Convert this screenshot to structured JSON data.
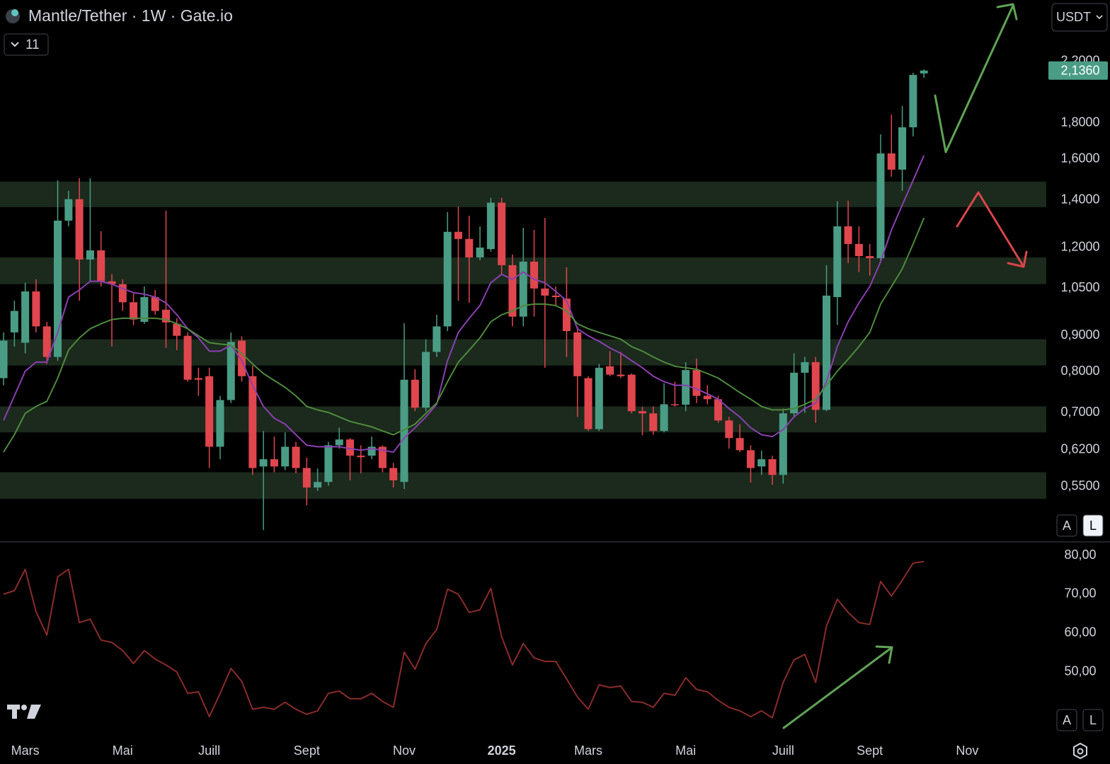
{
  "header": {
    "title": "Mantle/Tether · 1W · Gate.io",
    "indicators": "11",
    "currency": "USDT"
  },
  "chart_data": [
    {
      "type": "candlestick",
      "open": [
        0.783,
        0.909,
        0.879,
        1.039,
        0.927,
        0.839,
        1.309,
        1.404,
        1.153,
        1.188,
        1.074,
        1.064,
        1.003,
        0.941,
        1.02,
        0.979,
        0.935,
        0.899,
        0.783,
        0.788,
        0.626,
        0.729,
        0.885,
        0.788,
        0.587,
        0.601,
        0.587,
        0.626,
        0.584,
        0.548,
        0.558,
        0.629,
        0.641,
        0.608,
        0.608,
        0.626,
        0.584,
        0.558,
        0.779,
        0.711,
        0.853,
        0.927,
        1.262,
        1.233,
        1.161,
        1.193,
        1.388,
        1.132,
        0.957,
        1.145,
        1.049,
        1.025,
        1.015,
        0.909,
        0.783,
        0.663,
        0.814,
        0.792,
        0.792,
        0.703,
        0.698,
        0.659,
        0.719,
        0.718,
        0.804,
        0.739,
        0.731,
        0.682,
        0.644,
        0.619,
        0.587,
        0.601,
        0.571,
        0.698,
        0.797,
        0.825,
        0.706,
        1.02,
        1.285,
        1.213,
        1.166,
        1.158,
        1.63,
        1.546,
        1.775,
        2.116
      ],
      "high": [
        0.909,
        1.008,
        1.069,
        1.081,
        0.941,
        1.493,
        1.443,
        1.504,
        1.504,
        1.265,
        1.099,
        1.081,
        1.032,
        1.056,
        1.044,
        1.352,
        0.952,
        0.909,
        0.81,
        0.81,
        0.739,
        0.909,
        0.897,
        0.816,
        0.659,
        0.647,
        0.656,
        0.636,
        0.604,
        0.583,
        0.636,
        0.666,
        0.644,
        0.629,
        0.647,
        0.629,
        0.594,
        0.937,
        0.806,
        0.889,
        0.963,
        1.346,
        1.371,
        1.33,
        1.285,
        1.41,
        1.41,
        1.172,
        1.279,
        1.27,
        1.321,
        1.056,
        1.124,
        0.927,
        0.788,
        0.82,
        0.855,
        0.853,
        0.795,
        0.713,
        0.714,
        0.77,
        0.774,
        0.825,
        0.835,
        0.765,
        0.739,
        0.69,
        0.674,
        0.629,
        0.618,
        0.608,
        0.709,
        0.849,
        0.839,
        0.839,
        1.132,
        1.394,
        1.397,
        1.285,
        1.213,
        1.735,
        1.85,
        1.902,
        2.121,
        2.145
      ],
      "low": [
        0.765,
        0.868,
        0.849,
        0.909,
        0.82,
        0.829,
        1.285,
        1.008,
        1.074,
        1.056,
        0.868,
        0.975,
        0.931,
        0.935,
        0.963,
        0.864,
        0.858,
        0.774,
        0.739,
        0.584,
        0.601,
        0.722,
        0.774,
        0.571,
        0.477,
        0.576,
        0.58,
        0.574,
        0.517,
        0.542,
        0.551,
        0.622,
        0.561,
        0.574,
        0.601,
        0.576,
        0.548,
        0.545,
        0.703,
        0.703,
        0.839,
        0.913,
        1.008,
        1.001,
        1.15,
        1.183,
        1.099,
        0.927,
        0.927,
        0.957,
        0.81,
        0.992,
        0.839,
        0.69,
        0.659,
        0.659,
        0.788,
        0.783,
        0.698,
        0.65,
        0.651,
        0.656,
        0.714,
        0.703,
        0.722,
        0.719,
        0.677,
        0.622,
        0.615,
        0.557,
        0.571,
        0.553,
        0.555,
        0.69,
        0.699,
        0.677,
        0.703,
        0.931,
        1.14,
        1.107,
        1.094,
        1.145,
        1.511,
        1.443,
        1.723,
        2.086
      ],
      "close": [
        0.885,
        0.975,
        1.039,
        0.927,
        0.839,
        1.309,
        1.404,
        1.153,
        1.188,
        1.074,
        1.064,
        1.003,
        0.948,
        1.02,
        0.975,
        0.939,
        0.899,
        0.779,
        0.779,
        0.626,
        0.729,
        0.881,
        0.788,
        0.584,
        0.601,
        0.587,
        0.626,
        0.584,
        0.548,
        0.558,
        0.629,
        0.641,
        0.608,
        0.605,
        0.626,
        0.584,
        0.561,
        0.779,
        0.711,
        0.853,
        0.927,
        1.262,
        1.233,
        1.161,
        1.199,
        1.388,
        1.132,
        0.957,
        1.145,
        1.049,
        1.025,
        1.02,
        0.913,
        0.788,
        0.663,
        0.81,
        0.792,
        0.788,
        0.703,
        0.698,
        0.659,
        0.719,
        0.717,
        0.804,
        0.739,
        0.731,
        0.682,
        0.644,
        0.619,
        0.584,
        0.601,
        0.571,
        0.698,
        0.797,
        0.825,
        0.706,
        1.025,
        1.285,
        1.213,
        1.166,
        1.158,
        1.63,
        1.546,
        1.775,
        2.106,
        2.136
      ],
      "up_color": "#4a9c85",
      "down_color": "#e0464e",
      "lines": [
        {
          "color": "#8b3fb0",
          "values": [
            0.682,
            0.739,
            0.801,
            0.825,
            0.825,
            0.909,
            1.02,
            1.044,
            1.074,
            1.074,
            1.064,
            1.049,
            1.035,
            1.03,
            1.02,
            1.001,
            0.963,
            0.92,
            0.893,
            0.855,
            0.855,
            0.872,
            0.829,
            0.765,
            0.714,
            0.687,
            0.674,
            0.651,
            0.629,
            0.626,
            0.626,
            0.626,
            0.622,
            0.619,
            0.622,
            0.619,
            0.615,
            0.644,
            0.666,
            0.69,
            0.719,
            0.829,
            0.909,
            0.952,
            0.992,
            1.069,
            1.099,
            1.081,
            1.107,
            1.081,
            1.069,
            1.039,
            1.008,
            0.92,
            0.899,
            0.883,
            0.864,
            0.849,
            0.829,
            0.81,
            0.788,
            0.774,
            0.765,
            0.765,
            0.756,
            0.744,
            0.731,
            0.709,
            0.69,
            0.666,
            0.651,
            0.647,
            0.662,
            0.69,
            0.709,
            0.722,
            0.774,
            0.868,
            0.941,
            1.001,
            1.056,
            1.145,
            1.27,
            1.378,
            1.493,
            1.619
          ]
        },
        {
          "color": "#4d8a3e",
          "values": [
            0.615,
            0.651,
            0.698,
            0.714,
            0.726,
            0.783,
            0.858,
            0.893,
            0.92,
            0.935,
            0.948,
            0.952,
            0.952,
            0.952,
            0.952,
            0.948,
            0.935,
            0.92,
            0.899,
            0.879,
            0.875,
            0.872,
            0.849,
            0.82,
            0.795,
            0.777,
            0.76,
            0.739,
            0.714,
            0.706,
            0.7,
            0.69,
            0.68,
            0.674,
            0.668,
            0.659,
            0.651,
            0.662,
            0.674,
            0.698,
            0.722,
            0.774,
            0.825,
            0.858,
            0.893,
            0.941,
            0.963,
            0.975,
            0.992,
            0.997,
            0.997,
            0.992,
            0.975,
            0.935,
            0.92,
            0.909,
            0.899,
            0.889,
            0.868,
            0.855,
            0.839,
            0.825,
            0.814,
            0.81,
            0.806,
            0.795,
            0.783,
            0.765,
            0.747,
            0.731,
            0.714,
            0.706,
            0.706,
            0.709,
            0.719,
            0.731,
            0.765,
            0.801,
            0.833,
            0.868,
            0.909,
            0.997,
            1.056,
            1.119,
            1.213,
            1.321
          ]
        }
      ],
      "zones": [
        [
          1.368,
          1.487
        ],
        [
          1.064,
          1.161
        ],
        [
          0.816,
          0.889
        ],
        [
          0.656,
          0.714
        ],
        [
          0.528,
          0.576
        ]
      ],
      "zone_color": "#1b2a1c",
      "log_scale": true,
      "ylim": [
        0.46,
        2.689
      ],
      "yticks": [
        {
          "value": 0.55,
          "label": "0,5500"
        },
        {
          "value": 0.62,
          "label": "0,6200"
        },
        {
          "value": 0.7,
          "label": "0,7000"
        },
        {
          "value": 0.8,
          "label": "0,8000"
        },
        {
          "value": 0.9,
          "label": "0,9000"
        },
        {
          "value": 1.05,
          "label": "1,0500"
        },
        {
          "value": 1.2,
          "label": "1,2000"
        },
        {
          "value": 1.4,
          "label": "1,4000"
        },
        {
          "value": 1.6,
          "label": "1,6000"
        },
        {
          "value": 1.8,
          "label": "1,8000"
        },
        {
          "value": 2.2,
          "label": "2,2000"
        }
      ],
      "last_price": {
        "value": 2.136,
        "label": "2,1360"
      },
      "xlim": [
        -0.33,
        96.3
      ],
      "xticks": [
        {
          "value": 2,
          "label": "Mars"
        },
        {
          "value": 11,
          "label": "Mai"
        },
        {
          "value": 19,
          "label": "Juill"
        },
        {
          "value": 28,
          "label": "Sept"
        },
        {
          "value": 37,
          "label": "Nov"
        },
        {
          "value": 46,
          "label": "2025"
        },
        {
          "value": 54,
          "label": "Mars"
        },
        {
          "value": 63,
          "label": "Mai"
        },
        {
          "value": 72,
          "label": "Juill"
        },
        {
          "value": 80,
          "label": "Sept"
        },
        {
          "value": 89,
          "label": "Nov"
        }
      ],
      "scale_buttons": [
        "A",
        "L"
      ]
    },
    {
      "type": "line",
      "color": "#8a2b2b",
      "values": [
        70.0,
        70.9,
        76.4,
        65.5,
        59.5,
        74.5,
        76.4,
        62.7,
        63.6,
        58.2,
        57.6,
        55.5,
        52.2,
        55.5,
        53.3,
        51.8,
        50.0,
        44.5,
        44.9,
        38.5,
        44.5,
        50.9,
        47.6,
        40.4,
        40.9,
        40.4,
        42.2,
        40.4,
        39.1,
        40.0,
        44.5,
        45.1,
        43.1,
        43.1,
        44.5,
        42.4,
        40.9,
        55.1,
        50.7,
        57.3,
        60.9,
        71.3,
        70.0,
        65.3,
        66.0,
        71.5,
        59.1,
        51.8,
        57.3,
        53.6,
        52.7,
        52.7,
        48.2,
        43.6,
        40.4,
        46.7,
        46.0,
        46.4,
        42.4,
        42.2,
        40.9,
        44.5,
        44.0,
        48.5,
        45.5,
        44.9,
        42.7,
        40.9,
        40.0,
        38.5,
        40.0,
        38.2,
        47.3,
        53.1,
        54.5,
        47.3,
        61.8,
        68.7,
        65.3,
        62.7,
        62.2,
        73.3,
        69.5,
        73.6,
        78.0,
        78.4
      ],
      "ylim": [
        33.6,
        83.1
      ],
      "yticks": [
        {
          "value": 50,
          "label": "50,00"
        },
        {
          "value": 60,
          "label": "60,00"
        },
        {
          "value": 70,
          "label": "70,00"
        },
        {
          "value": 80,
          "label": "80,00"
        }
      ],
      "scale_buttons": [
        "A",
        "L"
      ]
    }
  ]
}
